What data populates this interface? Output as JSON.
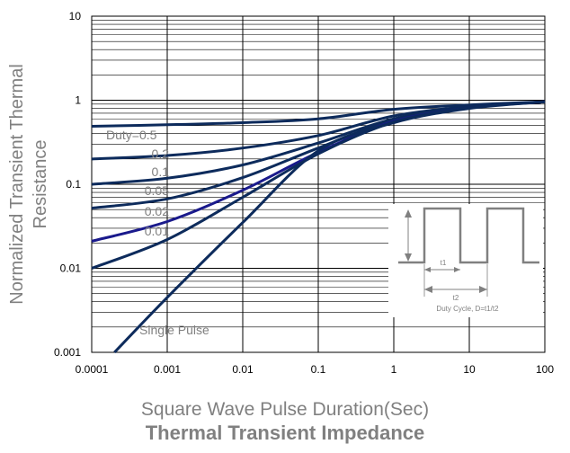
{
  "chart_data": {
    "type": "line",
    "title": "Thermal Transient Impedance",
    "xlabel": "Square Wave Pulse Duration(Sec)",
    "ylabel": "Normalized Transient Thermal Resistance",
    "xscale": "log",
    "yscale": "log",
    "xlim": [
      0.0001,
      100
    ],
    "ylim": [
      0.001,
      10
    ],
    "x_ticks": [
      "0.0001",
      "0.001",
      "0.01",
      "0.1",
      "1",
      "10",
      "100"
    ],
    "y_ticks": [
      "0.001",
      "0.01",
      "0.1",
      "1",
      "10"
    ],
    "grid": "log-minor horizontal lines, decade vertical lines",
    "series": [
      {
        "name": "Duty=0.5",
        "color": "#0d2b5c",
        "x": [
          0.0001,
          0.001,
          0.01,
          0.1,
          1,
          10,
          100
        ],
        "y": [
          0.49,
          0.51,
          0.54,
          0.6,
          0.78,
          0.88,
          0.96
        ]
      },
      {
        "name": "0.2",
        "color": "#0d2b5c",
        "x": [
          0.0001,
          0.001,
          0.01,
          0.1,
          1,
          10,
          100
        ],
        "y": [
          0.2,
          0.22,
          0.27,
          0.38,
          0.65,
          0.84,
          0.96
        ]
      },
      {
        "name": "0.1",
        "color": "#0d2b5c",
        "x": [
          0.0001,
          0.001,
          0.01,
          0.1,
          1,
          10,
          100
        ],
        "y": [
          0.1,
          0.118,
          0.17,
          0.31,
          0.6,
          0.83,
          0.96
        ]
      },
      {
        "name": "0.05",
        "color": "#0d2b5c",
        "x": [
          0.0001,
          0.001,
          0.01,
          0.1,
          1,
          10,
          100
        ],
        "y": [
          0.052,
          0.067,
          0.12,
          0.27,
          0.58,
          0.82,
          0.96
        ]
      },
      {
        "name": "0.02",
        "color": "#1a1a8c",
        "x": [
          0.0001,
          0.001,
          0.01,
          0.1,
          1,
          10,
          100
        ],
        "y": [
          0.021,
          0.036,
          0.085,
          0.24,
          0.56,
          0.81,
          0.96
        ]
      },
      {
        "name": "0.01",
        "color": "#0d2b5c",
        "x": [
          0.0001,
          0.001,
          0.01,
          0.1,
          1,
          10,
          100
        ],
        "y": [
          0.01,
          0.022,
          0.07,
          0.23,
          0.55,
          0.81,
          0.96
        ]
      },
      {
        "name": "Single Pulse",
        "color": "#0d2b5c",
        "x": [
          0.0002,
          0.001,
          0.01,
          0.1,
          1,
          10,
          100
        ],
        "y": [
          0.001,
          0.0045,
          0.035,
          0.25,
          0.54,
          0.8,
          0.96
        ]
      }
    ],
    "annotations": [
      "t1",
      "t2",
      "Duty Cycle, D=t1/t2"
    ]
  }
}
